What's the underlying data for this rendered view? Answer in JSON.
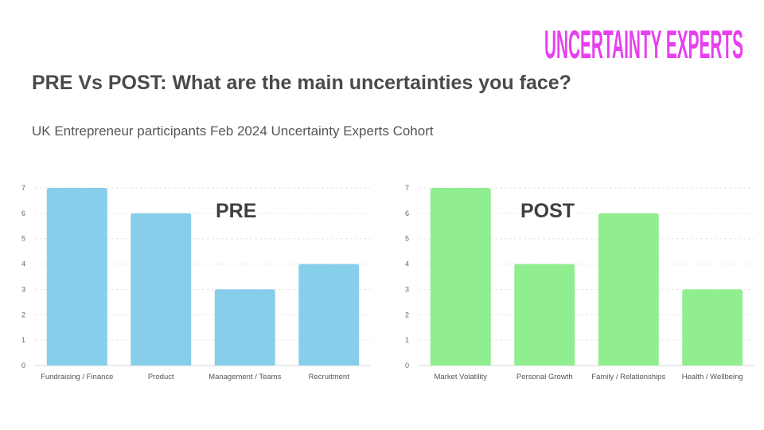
{
  "logo": {
    "text": "UNCERTAINTY EXPERTS",
    "color": "#e83ff0"
  },
  "slide": {
    "title": "PRE Vs POST: What are the main uncertainties you face?",
    "subtitle": "UK Entrepreneur participants Feb 2024 Uncertainty Experts Cohort"
  },
  "chart_data": [
    {
      "type": "bar",
      "title": "PRE",
      "categories": [
        "Fundraising / Finance",
        "Product",
        "Management / Teams",
        "Recruitment"
      ],
      "values": [
        7,
        6,
        3,
        4
      ],
      "ylim": [
        0,
        7
      ],
      "yticks": [
        0,
        1,
        2,
        3,
        4,
        5,
        6,
        7
      ],
      "color": "#87ceeb",
      "grid": true
    },
    {
      "type": "bar",
      "title": "POST",
      "categories": [
        "Market Volatility",
        "Personal Growth",
        "Family / Relationships",
        "Health / Wellbeing"
      ],
      "values": [
        7,
        4,
        6,
        3
      ],
      "ylim": [
        0,
        7
      ],
      "yticks": [
        0,
        1,
        2,
        3,
        4,
        5,
        6,
        7
      ],
      "color": "#90ee90",
      "grid": true
    }
  ]
}
